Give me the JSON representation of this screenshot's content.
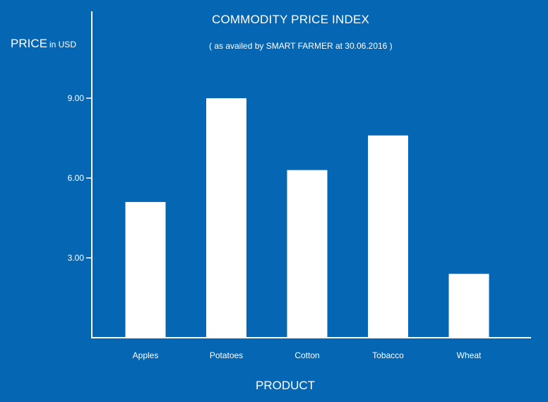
{
  "chart_data": {
    "type": "bar",
    "title": "COMMODITY PRICE INDEX",
    "subtitle": "( as availed by SMART FARMER at 30.06.2016 )",
    "ylabel": "PRICE",
    "ylabel_unit": "in USD",
    "xlabel": "PRODUCT",
    "categories": [
      "Apples",
      "Potatoes",
      "Cotton",
      "Tobacco",
      "Wheat"
    ],
    "values": [
      5.1,
      9.0,
      6.3,
      7.6,
      2.4
    ],
    "yticks": [
      "3.00",
      "6.00",
      "9.00"
    ],
    "ylim": [
      0,
      9.6
    ],
    "grid": false,
    "legend": "none",
    "colors": {
      "background": "#0566b4",
      "bar": "#ffffff",
      "axis": "#ffffff",
      "text": "#ffffff"
    }
  }
}
